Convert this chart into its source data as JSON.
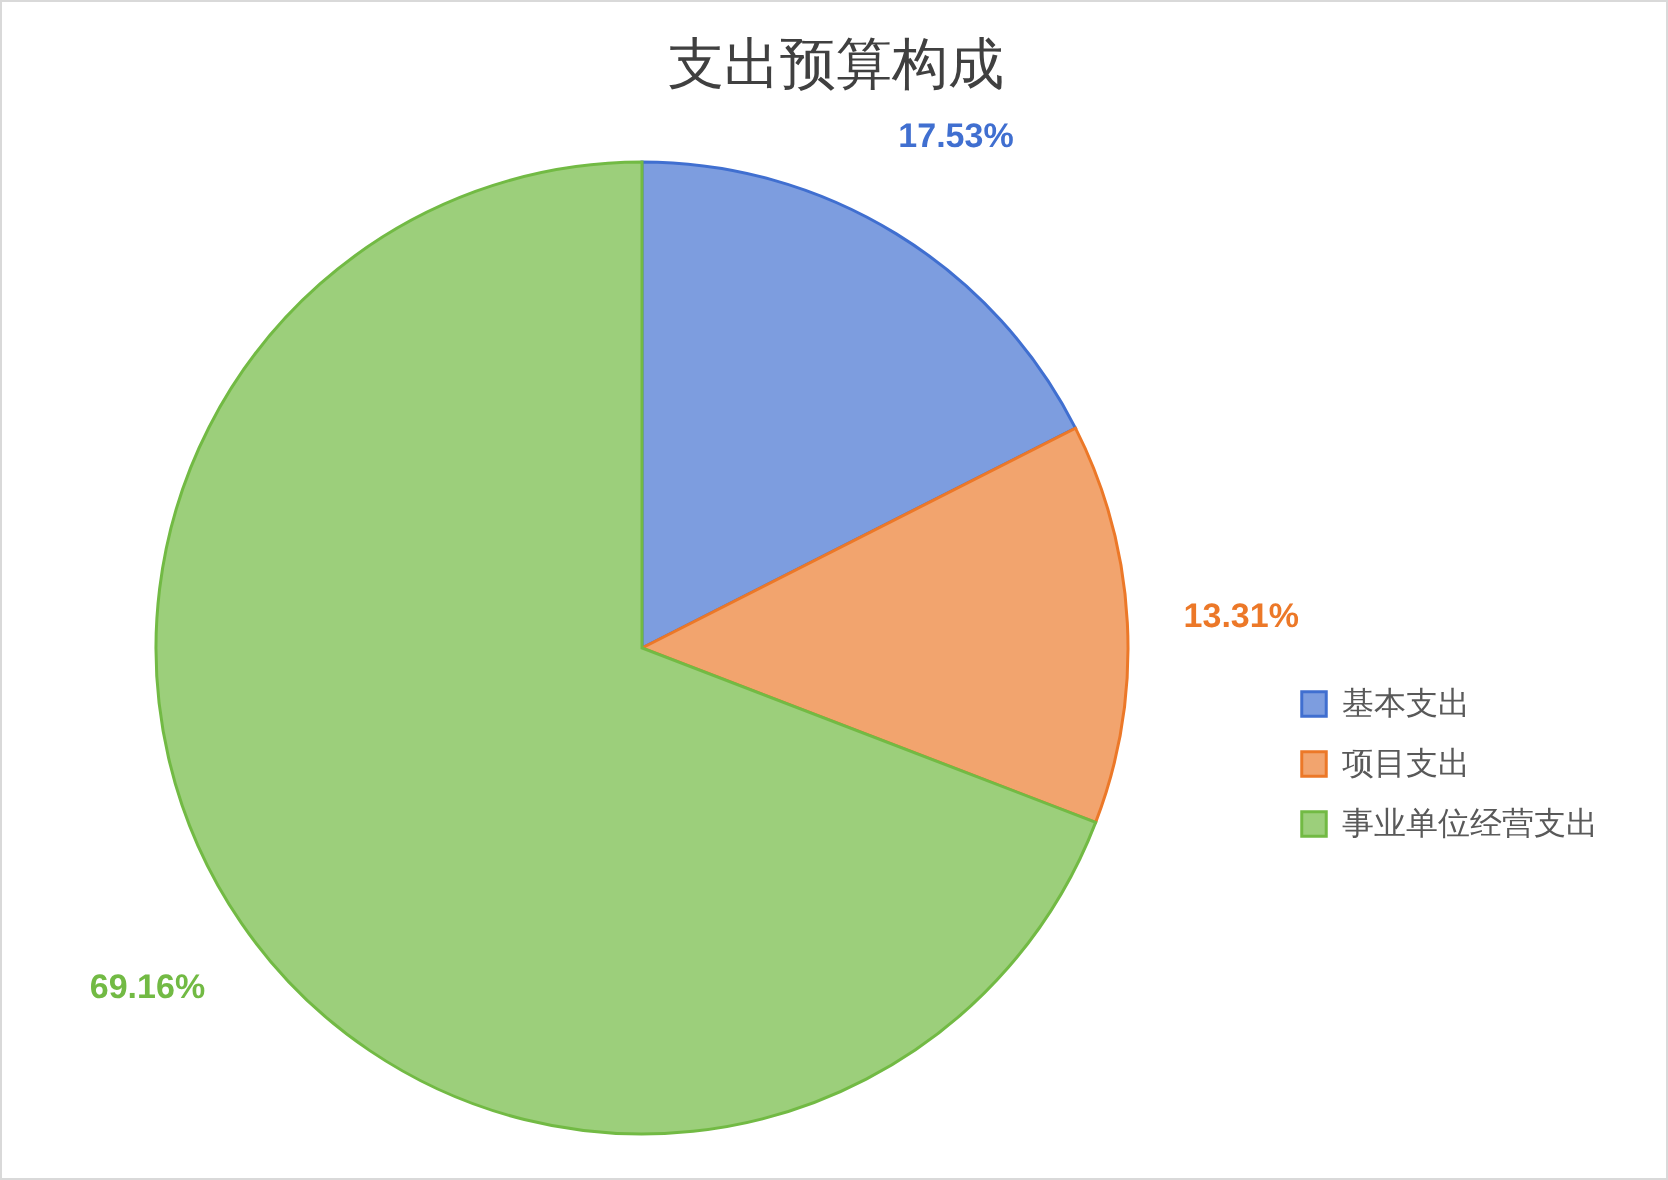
{
  "chart_data": {
    "type": "pie",
    "title": "支出预算构成",
    "categories": [
      "基本支出",
      "项目支出",
      "事业单位经营支出"
    ],
    "values": [
      17.53,
      13.31,
      69.16
    ],
    "colors": [
      "#7d9ddf",
      "#f2a46e",
      "#9ccf7b"
    ],
    "value_labels": [
      "17.53%",
      "13.31%",
      "69.16%"
    ],
    "legend": "right"
  }
}
